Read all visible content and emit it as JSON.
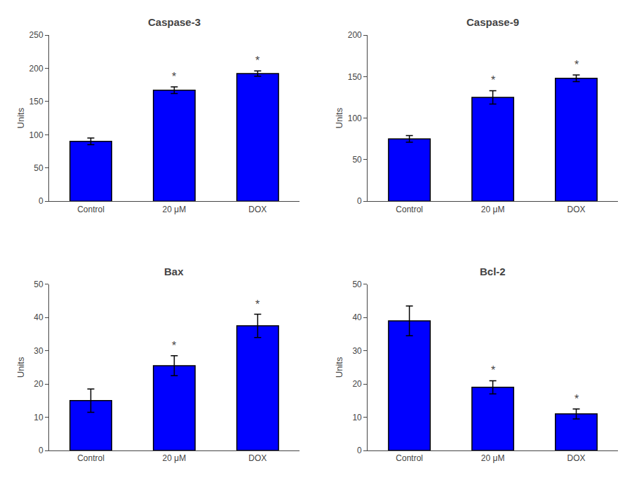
{
  "chart_data": [
    {
      "type": "bar",
      "title": "Caspase-3",
      "ylabel": "Units",
      "categories": [
        "Control",
        "20 μM",
        "DOX"
      ],
      "values": [
        90,
        167,
        192
      ],
      "errors": [
        5,
        5,
        4
      ],
      "color": "#0000FF",
      "ylim": [
        0,
        250
      ],
      "yticks": [
        0,
        50,
        100,
        150,
        200,
        250
      ],
      "grid": false,
      "annotations": [
        {
          "category": "20 μM",
          "text": "*"
        },
        {
          "category": "DOX",
          "text": "*"
        }
      ]
    },
    {
      "type": "bar",
      "title": "Caspase-9",
      "ylabel": "Units",
      "categories": [
        "Control",
        "20 μM",
        "DOX"
      ],
      "values": [
        75,
        125,
        148
      ],
      "errors": [
        4,
        8,
        4
      ],
      "color": "#0000FF",
      "ylim": [
        0,
        200
      ],
      "yticks": [
        0,
        50,
        100,
        150,
        200
      ],
      "grid": false,
      "annotations": [
        {
          "category": "20 μM",
          "text": "*"
        },
        {
          "category": "DOX",
          "text": "*"
        }
      ]
    },
    {
      "type": "bar",
      "title": "Bax",
      "ylabel": "Units",
      "categories": [
        "Control",
        "20 μM",
        "DOX"
      ],
      "values": [
        15,
        25.5,
        37.5
      ],
      "errors": [
        3.5,
        3,
        3.5
      ],
      "color": "#0000FF",
      "ylim": [
        0,
        50
      ],
      "yticks": [
        0,
        10,
        20,
        30,
        40,
        50
      ],
      "grid": false,
      "annotations": [
        {
          "category": "20 μM",
          "text": "*"
        },
        {
          "category": "DOX",
          "text": "*"
        }
      ]
    },
    {
      "type": "bar",
      "title": "Bcl-2",
      "ylabel": "Units",
      "categories": [
        "Control",
        "20 μM",
        "DOX"
      ],
      "values": [
        39,
        19,
        11
      ],
      "errors": [
        4.5,
        2,
        1.5
      ],
      "color": "#0000FF",
      "ylim": [
        0,
        50
      ],
      "yticks": [
        0,
        10,
        20,
        30,
        40,
        50
      ],
      "grid": false,
      "annotations": [
        {
          "category": "20 μM",
          "text": "*"
        },
        {
          "category": "DOX",
          "text": "*"
        }
      ]
    }
  ]
}
